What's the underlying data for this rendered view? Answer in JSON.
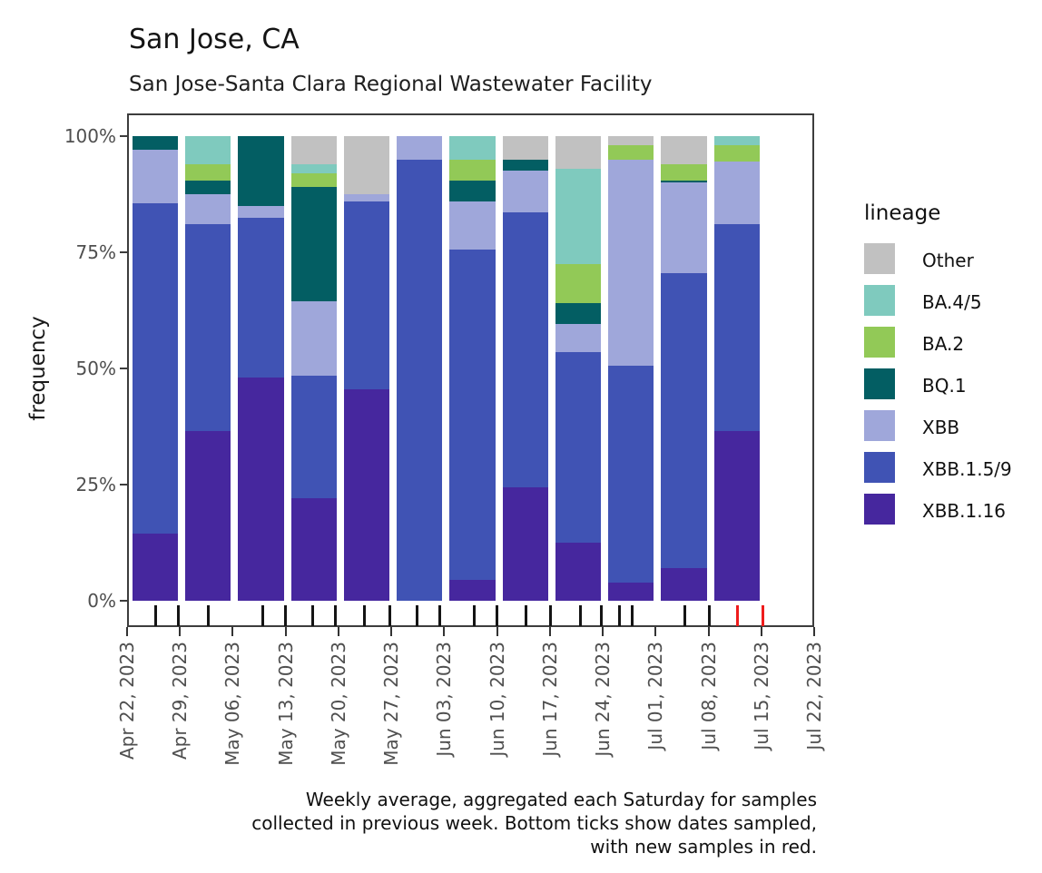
{
  "header": {
    "title": "San Jose, CA",
    "subtitle": "San Jose-Santa Clara Regional Wastewater Facility"
  },
  "caption": {
    "lines": [
      "Weekly average, aggregated each Saturday for samples",
      "collected in previous week. Bottom ticks show dates sampled,",
      "with new samples in red."
    ]
  },
  "y_axis": {
    "label": "frequency",
    "tick_labels": [
      "100%",
      "75%",
      "50%",
      "25%",
      "0%"
    ],
    "tick_values": [
      100,
      75,
      50,
      25,
      0
    ]
  },
  "x_axis": {
    "tick_labels": [
      "Apr 22, 2023",
      "Apr 29, 2023",
      "May 06, 2023",
      "May 13, 2023",
      "May 20, 2023",
      "May 27, 2023",
      "Jun 03, 2023",
      "Jun 10, 2023",
      "Jun 17, 2023",
      "Jun 24, 2023",
      "Jul 01, 2023",
      "Jul 08, 2023",
      "Jul 15, 2023",
      "Jul 22, 2023"
    ]
  },
  "legend": {
    "title": "lineage",
    "entries": [
      {
        "label": "Other",
        "color": "#c1c1c1"
      },
      {
        "label": "BA.4/5",
        "color": "#7fcabe"
      },
      {
        "label": "BA.2",
        "color": "#92c957"
      },
      {
        "label": "BQ.1",
        "color": "#035e63"
      },
      {
        "label": "XBB",
        "color": "#9fa7da"
      },
      {
        "label": "XBB.1.5/9",
        "color": "#4053b4"
      },
      {
        "label": "XBB.1.16",
        "color": "#46279e"
      }
    ]
  },
  "chart_data": {
    "type": "bar",
    "stacked": true,
    "title": "San Jose, CA",
    "subtitle": "San Jose-Santa Clara Regional Wastewater Facility",
    "xlabel": "",
    "ylabel": "frequency",
    "ylim": [
      0,
      100
    ],
    "grid": false,
    "legend_position": "right",
    "x_tick_dates": [
      "Apr 22, 2023",
      "Apr 29, 2023",
      "May 06, 2023",
      "May 13, 2023",
      "May 20, 2023",
      "May 27, 2023",
      "Jun 03, 2023",
      "Jun 10, 2023",
      "Jun 17, 2023",
      "Jun 24, 2023",
      "Jul 01, 2023",
      "Jul 08, 2023",
      "Jul 15, 2023",
      "Jul 22, 2023"
    ],
    "note": "Each bar spans one week between adjacent date ticks; values are percent frequency. Final interval (Jul 15 - Jul 22) has no bar.",
    "categories": [
      "week ending Apr 29",
      "week ending May 06",
      "week ending May 13",
      "week ending May 20",
      "week ending May 27",
      "week ending Jun 03",
      "week ending Jun 10",
      "week ending Jun 17",
      "week ending Jun 24",
      "week ending Jul 01",
      "week ending Jul 08",
      "week ending Jul 15"
    ],
    "series": [
      {
        "name": "Other",
        "color": "#c1c1c1",
        "values": [
          0,
          0,
          0,
          6,
          12.5,
          0,
          0,
          5,
          7,
          2,
          6,
          0
        ]
      },
      {
        "name": "BA.4/5",
        "color": "#7fcabe",
        "values": [
          0,
          6,
          0,
          2,
          0,
          0,
          5,
          0,
          20.5,
          0,
          0,
          2
        ]
      },
      {
        "name": "BA.2",
        "color": "#92c957",
        "values": [
          0,
          3.5,
          0,
          3,
          0,
          0,
          4.5,
          0,
          8.5,
          3,
          3.5,
          3.5
        ]
      },
      {
        "name": "BQ.1",
        "color": "#035e63",
        "values": [
          3,
          3,
          15,
          24.5,
          0,
          0,
          4.5,
          2.5,
          4.5,
          0,
          0.5,
          0
        ]
      },
      {
        "name": "XBB",
        "color": "#9fa7da",
        "values": [
          11.5,
          6.5,
          2.5,
          16,
          1.5,
          5,
          10.5,
          9,
          6,
          44.5,
          19.5,
          13.5
        ]
      },
      {
        "name": "XBB.1.5/9",
        "color": "#4053b4",
        "values": [
          71,
          44.5,
          34.5,
          26.5,
          40.5,
          95,
          71,
          59,
          41,
          46.5,
          63.5,
          44.5
        ]
      },
      {
        "name": "XBB.1.16",
        "color": "#46279e",
        "values": [
          14.5,
          36.5,
          48,
          22,
          45.5,
          0,
          4.5,
          24.5,
          12.5,
          4,
          7,
          36.5
        ]
      }
    ],
    "rug_ticks_pct_along_axis": [
      {
        "p": 4.1,
        "new": false
      },
      {
        "p": 7.4,
        "new": false
      },
      {
        "p": 11.8,
        "new": false
      },
      {
        "p": 19.7,
        "new": false
      },
      {
        "p": 23.0,
        "new": false
      },
      {
        "p": 27.0,
        "new": false
      },
      {
        "p": 30.3,
        "new": false
      },
      {
        "p": 34.5,
        "new": false
      },
      {
        "p": 38.2,
        "new": false
      },
      {
        "p": 42.2,
        "new": false
      },
      {
        "p": 45.5,
        "new": false
      },
      {
        "p": 50.5,
        "new": false
      },
      {
        "p": 53.8,
        "new": false
      },
      {
        "p": 58.1,
        "new": false
      },
      {
        "p": 61.6,
        "new": false
      },
      {
        "p": 66.0,
        "new": false
      },
      {
        "p": 69.0,
        "new": false
      },
      {
        "p": 71.6,
        "new": false
      },
      {
        "p": 73.5,
        "new": false
      },
      {
        "p": 81.2,
        "new": false
      },
      {
        "p": 84.8,
        "new": false
      },
      {
        "p": 88.9,
        "new": true
      },
      {
        "p": 92.5,
        "new": true
      }
    ]
  },
  "colors": {
    "rug_black": "#141414",
    "rug_new_red": "#ee1c1c",
    "panel_border": "#3d3d3d",
    "tick_text": "#4f4f4f"
  }
}
